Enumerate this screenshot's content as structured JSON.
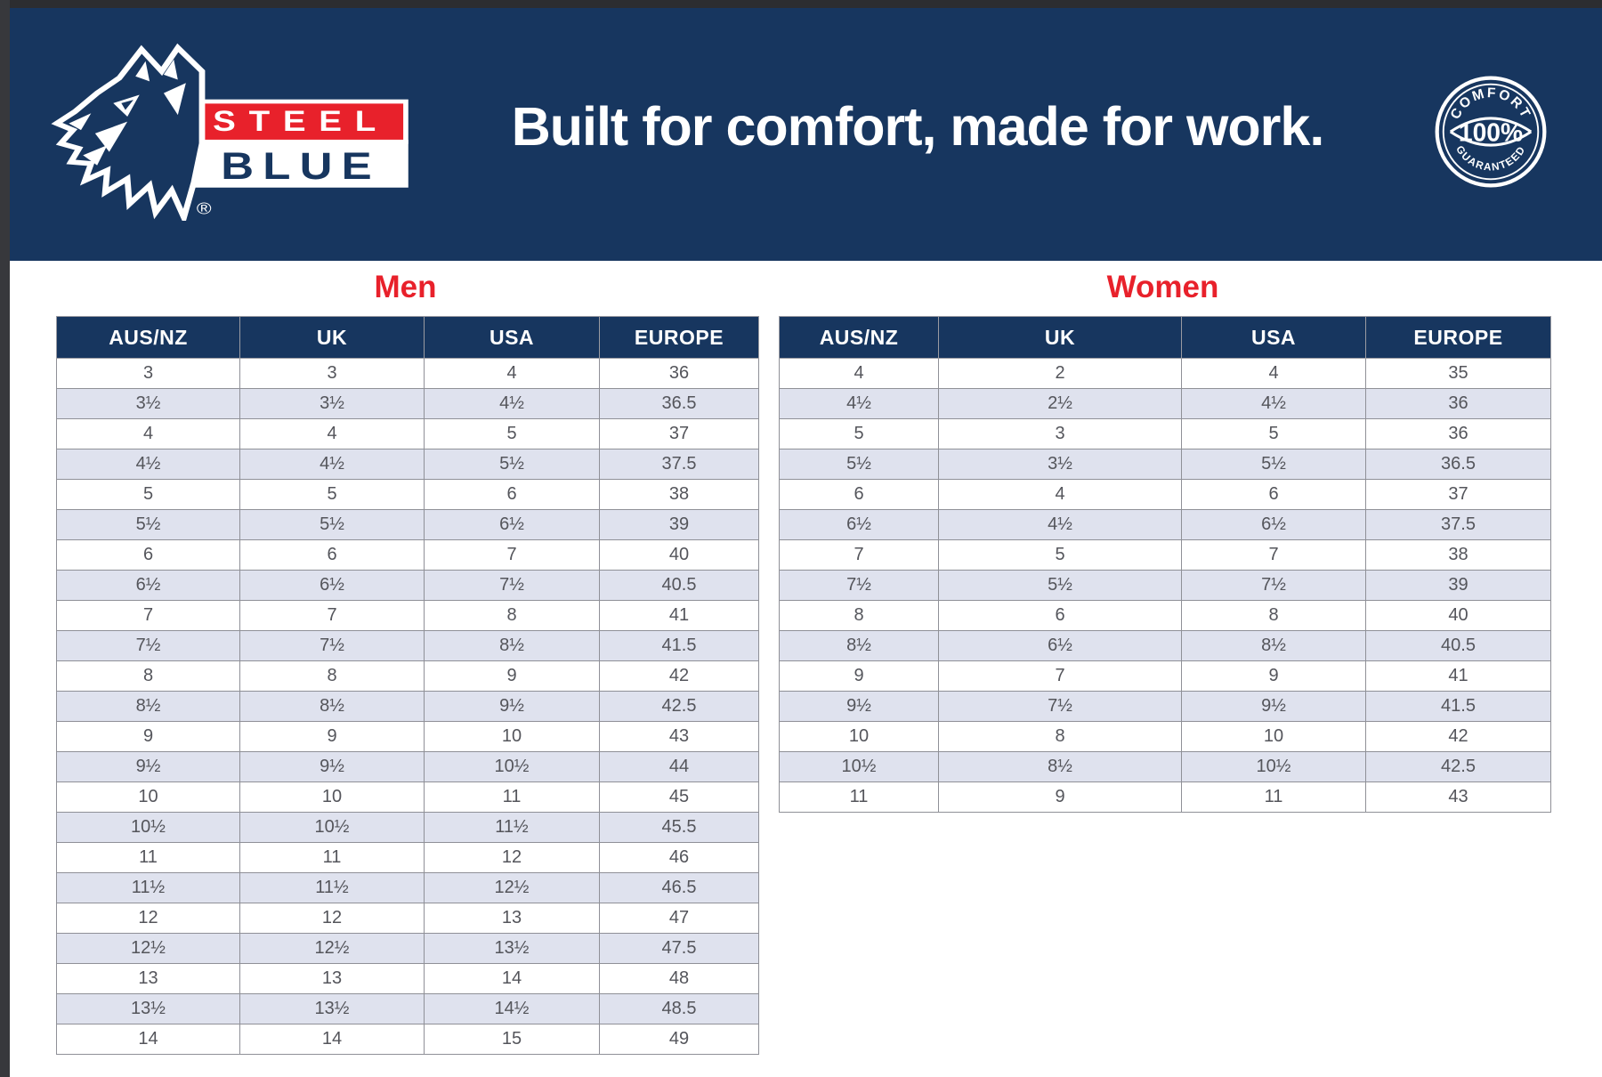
{
  "banner": {
    "tagline": "Built for comfort, made for work.",
    "logo": {
      "steel": "STEEL",
      "blue": "BLUE",
      "registered": "®"
    },
    "badge": {
      "top": "COMFORT",
      "middle": "100%",
      "bottom": "GUARANTEED"
    }
  },
  "colors": {
    "navy": "#17365F",
    "red": "#E8212B",
    "alt_row": "#DFE2EE",
    "grid_line": "#8f9097",
    "cell_text": "#54555B",
    "white": "#ffffff"
  },
  "tables": {
    "men": {
      "title": "Men",
      "headers": [
        "AUS/NZ",
        "UK",
        "USA",
        "EUROPE"
      ],
      "rows": [
        [
          "3",
          "3",
          "4",
          "36"
        ],
        [
          "3½",
          "3½",
          "4½",
          "36.5"
        ],
        [
          "4",
          "4",
          "5",
          "37"
        ],
        [
          "4½",
          "4½",
          "5½",
          "37.5"
        ],
        [
          "5",
          "5",
          "6",
          "38"
        ],
        [
          "5½",
          "5½",
          "6½",
          "39"
        ],
        [
          "6",
          "6",
          "7",
          "40"
        ],
        [
          "6½",
          "6½",
          "7½",
          "40.5"
        ],
        [
          "7",
          "7",
          "8",
          "41"
        ],
        [
          "7½",
          "7½",
          "8½",
          "41.5"
        ],
        [
          "8",
          "8",
          "9",
          "42"
        ],
        [
          "8½",
          "8½",
          "9½",
          "42.5"
        ],
        [
          "9",
          "9",
          "10",
          "43"
        ],
        [
          "9½",
          "9½",
          "10½",
          "44"
        ],
        [
          "10",
          "10",
          "11",
          "45"
        ],
        [
          "10½",
          "10½",
          "11½",
          "45.5"
        ],
        [
          "11",
          "11",
          "12",
          "46"
        ],
        [
          "11½",
          "11½",
          "12½",
          "46.5"
        ],
        [
          "12",
          "12",
          "13",
          "47"
        ],
        [
          "12½",
          "12½",
          "13½",
          "47.5"
        ],
        [
          "13",
          "13",
          "14",
          "48"
        ],
        [
          "13½",
          "13½",
          "14½",
          "48.5"
        ],
        [
          "14",
          "14",
          "15",
          "49"
        ]
      ]
    },
    "women": {
      "title": "Women",
      "headers": [
        "AUS/NZ",
        "UK",
        "USA",
        "EUROPE"
      ],
      "rows": [
        [
          "4",
          "2",
          "4",
          "35"
        ],
        [
          "4½",
          "2½",
          "4½",
          "36"
        ],
        [
          "5",
          "3",
          "5",
          "36"
        ],
        [
          "5½",
          "3½",
          "5½",
          "36.5"
        ],
        [
          "6",
          "4",
          "6",
          "37"
        ],
        [
          "6½",
          "4½",
          "6½",
          "37.5"
        ],
        [
          "7",
          "5",
          "7",
          "38"
        ],
        [
          "7½",
          "5½",
          "7½",
          "39"
        ],
        [
          "8",
          "6",
          "8",
          "40"
        ],
        [
          "8½",
          "6½",
          "8½",
          "40.5"
        ],
        [
          "9",
          "7",
          "9",
          "41"
        ],
        [
          "9½",
          "7½",
          "9½",
          "41.5"
        ],
        [
          "10",
          "8",
          "10",
          "42"
        ],
        [
          "10½",
          "8½",
          "10½",
          "42.5"
        ],
        [
          "11",
          "9",
          "11",
          "43"
        ]
      ]
    }
  }
}
